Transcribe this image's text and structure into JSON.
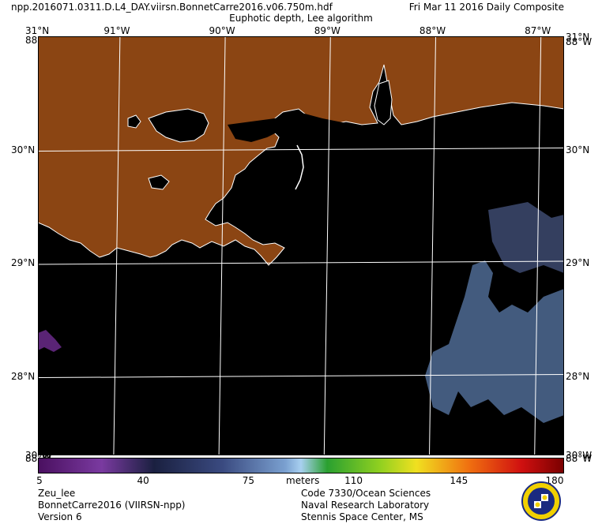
{
  "header": {
    "filename": "npp.2016071.0311.D.L4_DAY.viirsn.BonnetCarre2016.v06.750m.hdf",
    "date": "Fri Mar 11 2016 Daily Composite",
    "product": "Euphotic depth, Lee algorithm"
  },
  "map": {
    "lon_range": [
      -91.75,
      -86.75
    ],
    "lat_range": [
      27.3,
      31.0
    ],
    "lon_labels": [
      {
        "value": -91,
        "text": "91°W"
      },
      {
        "value": -90,
        "text": "90°W"
      },
      {
        "value": -89,
        "text": "89°W"
      },
      {
        "value": -88,
        "text": "88°W"
      },
      {
        "value": -87,
        "text": "87°W"
      }
    ],
    "lat_labels": [
      {
        "value": 30,
        "text": "30°N"
      },
      {
        "value": 29,
        "text": "29°N"
      },
      {
        "value": 28,
        "text": "28°N"
      }
    ],
    "corner_labels": {
      "top_left": "31°N",
      "top_left_below": "88°W",
      "top_right": "31°N",
      "top_right_below": "88°W",
      "bottom_left_above": "30°W",
      "bottom_left": "88°W",
      "bottom_right_above": "30°W",
      "bottom_right": "88°W"
    },
    "colors": {
      "land": "#8b4513",
      "water": "#000000",
      "coast": "#ffffff",
      "grid": "#ffffff",
      "low_depth": "#6a2a8a",
      "high_depth": "#5a7aa8"
    }
  },
  "colorbar": {
    "min": 5,
    "max": 180,
    "unit": "meters",
    "ticks": [
      {
        "value": 5,
        "text": "5"
      },
      {
        "value": 40,
        "text": "40"
      },
      {
        "value": 75,
        "text": "75"
      },
      {
        "value": 110,
        "text": "110"
      },
      {
        "value": 145,
        "text": "145"
      },
      {
        "value": 180,
        "text": "180"
      }
    ]
  },
  "footer": {
    "left": [
      "Zeu_lee",
      "BonnetCarre2016 (VIIRSN-npp)",
      "Version 6"
    ],
    "right": [
      "Code 7330/Ocean Sciences",
      "Naval Research Laboratory",
      "Stennis Space Center, MS"
    ]
  },
  "logo": {
    "name": "naval-research-laboratory-seal"
  }
}
